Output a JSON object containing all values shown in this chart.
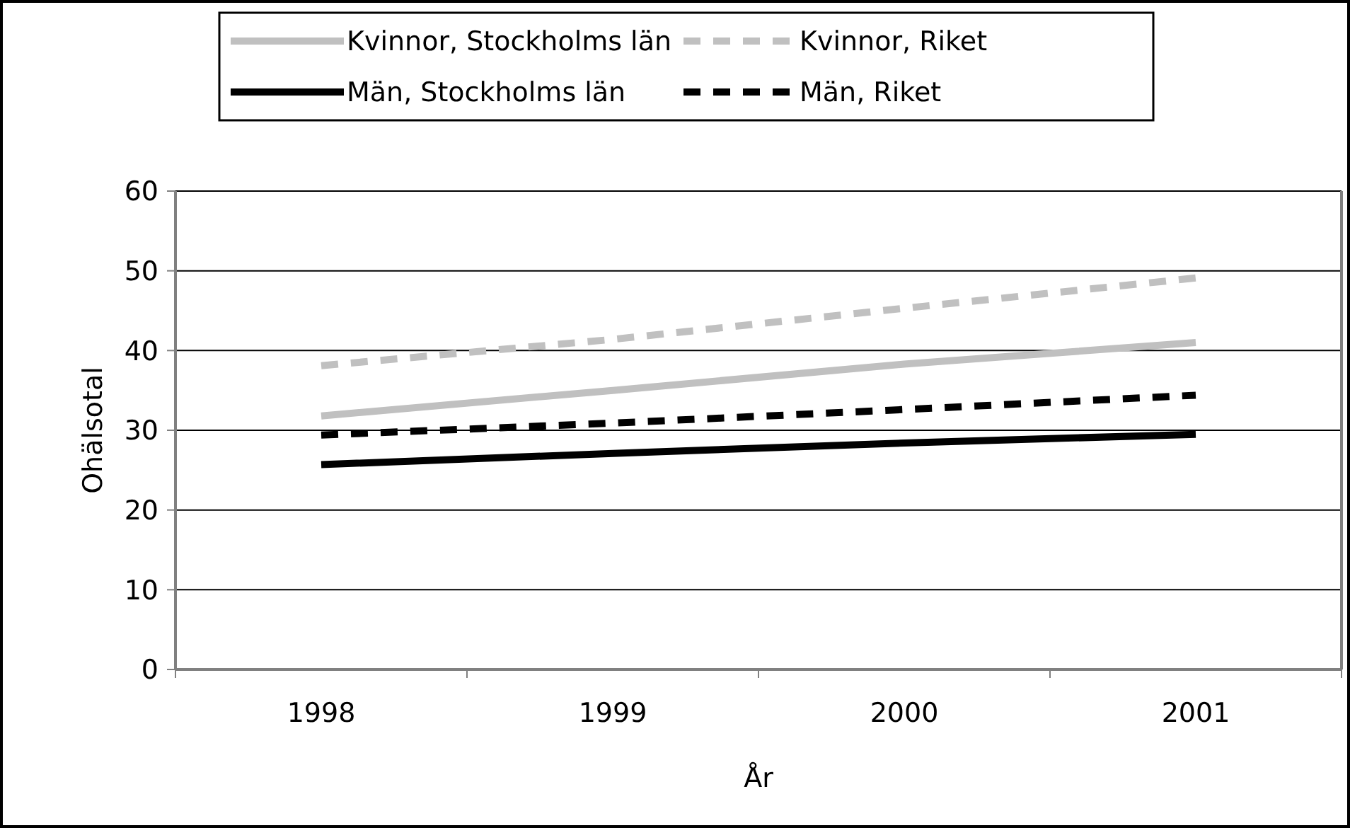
{
  "chart_data": {
    "type": "line",
    "xlabel": "År",
    "ylabel": "Ohälsotal",
    "categories": [
      "1998",
      "1999",
      "2000",
      "2001"
    ],
    "series": [
      {
        "name": "Kvinnor, Stockholms län",
        "color": "#c0c0c0",
        "line_style": "solid",
        "values": [
          31.8,
          35.0,
          38.3,
          41.0
        ]
      },
      {
        "name": "Kvinnor, Riket",
        "color": "#c0c0c0",
        "line_style": "dashed",
        "values": [
          38.1,
          41.4,
          45.3,
          49.1
        ]
      },
      {
        "name": "Män, Stockholms län",
        "color": "#000000",
        "line_style": "solid",
        "values": [
          25.7,
          27.1,
          28.4,
          29.5
        ]
      },
      {
        "name": "Män, Riket",
        "color": "#000000",
        "line_style": "dashed",
        "values": [
          29.4,
          30.9,
          32.6,
          34.4
        ]
      }
    ],
    "ylim": [
      0,
      60
    ],
    "yticks": [
      0,
      10,
      20,
      30,
      40,
      50,
      60
    ],
    "grid": "y",
    "legend": "top",
    "marker": "none"
  }
}
